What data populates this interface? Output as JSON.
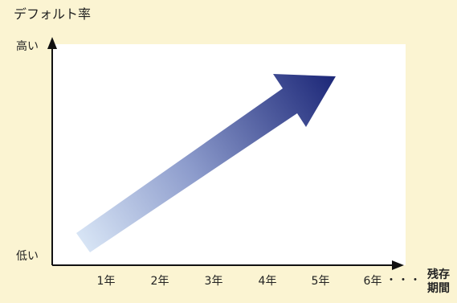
{
  "header": {
    "clipped_title": ""
  },
  "chart": {
    "y_title": "デフォルト率",
    "y_high_label": "高い",
    "y_low_label": "低い",
    "x_ticks": [
      "1年",
      "2年",
      "3年",
      "4年",
      "5年",
      "6年"
    ],
    "x_ellipsis": "・・・",
    "x_title_line1": "残存",
    "x_title_line2": "期間"
  },
  "colors": {
    "background": "#fbf4d2",
    "plot_background": "#ffffff",
    "arrow_start": "#dbe8f7",
    "arrow_end": "#1f2a7a",
    "axis": "#111111"
  }
}
